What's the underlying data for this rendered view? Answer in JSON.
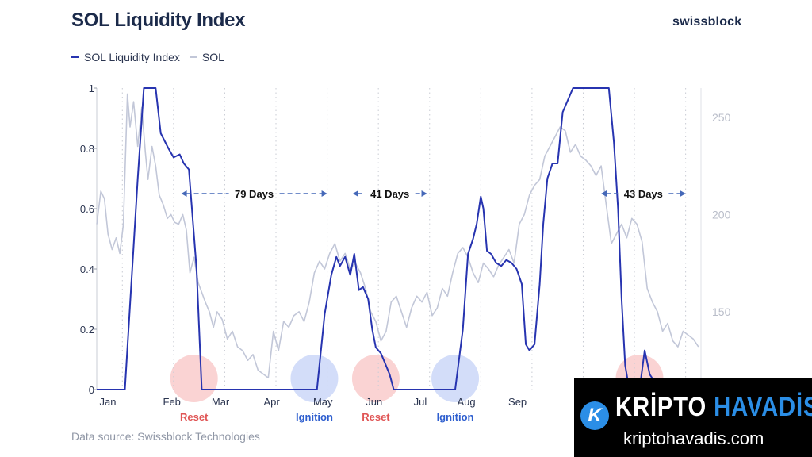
{
  "header": {
    "title": "SOL Liquidity Index",
    "brand": "swissblock"
  },
  "legend": [
    {
      "label": "SOL Liquidity Index",
      "color": "#2734b0"
    },
    {
      "label": "SOL",
      "color": "#c2c7d8"
    }
  ],
  "footer": {
    "source": "Data source: Swissblock Technologies"
  },
  "watermark": {
    "name_part1": "KRİPTO",
    "name_part2": "HAVADİS",
    "url": "kriptohavadis.com",
    "logo_letter": "K"
  },
  "chart_data": {
    "type": "line",
    "title": "SOL Liquidity Index",
    "x_tick_labels": [
      "Jan",
      "Feb",
      "Mar",
      "Apr",
      "May",
      "Jun",
      "Jul",
      "Aug",
      "Sep"
    ],
    "x_range": [
      0,
      11.8
    ],
    "y_left": {
      "range": [
        0,
        1
      ],
      "ticks": [
        0,
        0.2,
        0.4,
        0.6,
        0.8,
        1
      ],
      "tick_labels": [
        "0",
        "0.2",
        "0.4",
        "0.6",
        "0.8",
        "1"
      ]
    },
    "y_right": {
      "range": [
        110,
        265
      ],
      "ticks": [
        150,
        200,
        250
      ],
      "tick_labels": [
        "150",
        "200",
        "250"
      ]
    },
    "grid": "vertical dotted",
    "series": [
      {
        "name": "SOL Liquidity Index",
        "axis": "left",
        "color": "#2734b0",
        "x": [
          0,
          0.55,
          0.8,
          0.92,
          1.15,
          1.25,
          1.4,
          1.5,
          1.62,
          1.7,
          1.8,
          1.95,
          2.05,
          2.15,
          2.3,
          2.4,
          2.6,
          3.5,
          4.3,
          4.45,
          4.58,
          4.68,
          4.75,
          4.85,
          4.95,
          5.03,
          5.12,
          5.2,
          5.3,
          5.38,
          5.45,
          5.55,
          5.6,
          5.72,
          5.8,
          5.92,
          6.0,
          6.15,
          7.0,
          7.15,
          7.25,
          7.35,
          7.42,
          7.5,
          7.55,
          7.62,
          7.7,
          7.8,
          7.9,
          8.0,
          8.1,
          8.2,
          8.3,
          8.38,
          8.45,
          8.55,
          8.65,
          8.72,
          8.8,
          8.9,
          9.0,
          9.1,
          9.3,
          9.5,
          9.7,
          9.85,
          10.0,
          10.1,
          10.18,
          10.25,
          10.32,
          10.4,
          10.5,
          10.6,
          10.7,
          10.8,
          11.0,
          11.2
        ],
        "values": [
          0,
          0,
          0.7,
          1,
          1,
          0.85,
          0.8,
          0.77,
          0.78,
          0.75,
          0.73,
          0.4,
          0,
          0,
          0,
          0,
          0,
          0,
          0,
          0.25,
          0.38,
          0.44,
          0.41,
          0.44,
          0.38,
          0.45,
          0.33,
          0.34,
          0.3,
          0.2,
          0.14,
          0.12,
          0.1,
          0.05,
          0,
          0,
          0,
          0,
          0,
          0.2,
          0.45,
          0.5,
          0.55,
          0.64,
          0.6,
          0.46,
          0.45,
          0.42,
          0.41,
          0.43,
          0.42,
          0.4,
          0.35,
          0.15,
          0.13,
          0.15,
          0.35,
          0.55,
          0.7,
          0.75,
          0.75,
          0.92,
          1,
          1,
          1,
          1,
          1,
          0.82,
          0.6,
          0.3,
          0.08,
          0,
          0,
          0,
          0.13,
          0.05,
          0,
          0
        ]
      },
      {
        "name": "SOL",
        "axis": "right",
        "color": "#c2c7d8",
        "x": [
          0,
          0.08,
          0.15,
          0.22,
          0.3,
          0.38,
          0.45,
          0.52,
          0.6,
          0.65,
          0.72,
          0.8,
          0.88,
          0.95,
          1.0,
          1.08,
          1.15,
          1.22,
          1.3,
          1.38,
          1.45,
          1.52,
          1.6,
          1.68,
          1.75,
          1.82,
          1.9,
          1.98,
          2.05,
          2.12,
          2.2,
          2.28,
          2.35,
          2.45,
          2.55,
          2.65,
          2.75,
          2.85,
          2.95,
          3.05,
          3.15,
          3.25,
          3.35,
          3.45,
          3.55,
          3.65,
          3.75,
          3.85,
          3.95,
          4.05,
          4.15,
          4.25,
          4.35,
          4.45,
          4.55,
          4.65,
          4.75,
          4.85,
          4.95,
          5.05,
          5.15,
          5.25,
          5.35,
          5.45,
          5.55,
          5.65,
          5.75,
          5.85,
          5.95,
          6.05,
          6.15,
          6.25,
          6.35,
          6.45,
          6.55,
          6.65,
          6.75,
          6.85,
          6.95,
          7.05,
          7.15,
          7.25,
          7.35,
          7.45,
          7.55,
          7.65,
          7.75,
          7.85,
          7.95,
          8.05,
          8.15,
          8.25,
          8.35,
          8.45,
          8.55,
          8.65,
          8.75,
          8.85,
          8.95,
          9.05,
          9.15,
          9.25,
          9.35,
          9.45,
          9.55,
          9.65,
          9.75,
          9.85,
          9.95,
          10.05,
          10.15,
          10.25,
          10.35,
          10.45,
          10.55,
          10.65,
          10.75,
          10.85,
          10.95,
          11.05,
          11.15,
          11.25,
          11.35,
          11.45,
          11.55,
          11.65,
          11.75
        ],
        "values": [
          195,
          212,
          208,
          190,
          182,
          188,
          180,
          195,
          262,
          245,
          258,
          235,
          255,
          232,
          218,
          235,
          225,
          210,
          205,
          198,
          200,
          196,
          195,
          200,
          192,
          170,
          178,
          165,
          160,
          155,
          150,
          142,
          150,
          146,
          136,
          140,
          132,
          130,
          125,
          128,
          120,
          118,
          116,
          140,
          130,
          145,
          142,
          148,
          150,
          145,
          155,
          170,
          176,
          172,
          180,
          185,
          176,
          180,
          172,
          175,
          170,
          162,
          150,
          145,
          135,
          140,
          155,
          158,
          150,
          142,
          152,
          158,
          155,
          160,
          148,
          152,
          162,
          158,
          170,
          180,
          183,
          178,
          170,
          165,
          175,
          172,
          168,
          174,
          178,
          182,
          175,
          195,
          200,
          210,
          215,
          218,
          230,
          235,
          240,
          245,
          243,
          232,
          236,
          230,
          228,
          225,
          220,
          225,
          205,
          185,
          190,
          195,
          188,
          198,
          195,
          186,
          162,
          155,
          150,
          140,
          144,
          135,
          132,
          140,
          138,
          136,
          132
        ]
      }
    ],
    "annotations": [
      {
        "label": "79 Days",
        "x_start": 1.65,
        "x_end": 4.5,
        "y": 0.65
      },
      {
        "label": "41 Days",
        "x_start": 5.0,
        "x_end": 6.45,
        "y": 0.65
      },
      {
        "label": "43 Days",
        "x_start": 9.85,
        "x_end": 11.5,
        "y": 0.65
      }
    ],
    "markers": [
      {
        "label": "Reset",
        "x": 1.9,
        "color": "#ee6e6e"
      },
      {
        "label": "Ignition",
        "x": 4.25,
        "color": "#6d8eea"
      },
      {
        "label": "Reset",
        "x": 5.45,
        "color": "#ee6e6e"
      },
      {
        "label": "Ignition",
        "x": 7.0,
        "color": "#6d8eea"
      },
      {
        "label": "",
        "x": 10.6,
        "color": "#ee6e6e"
      }
    ]
  }
}
